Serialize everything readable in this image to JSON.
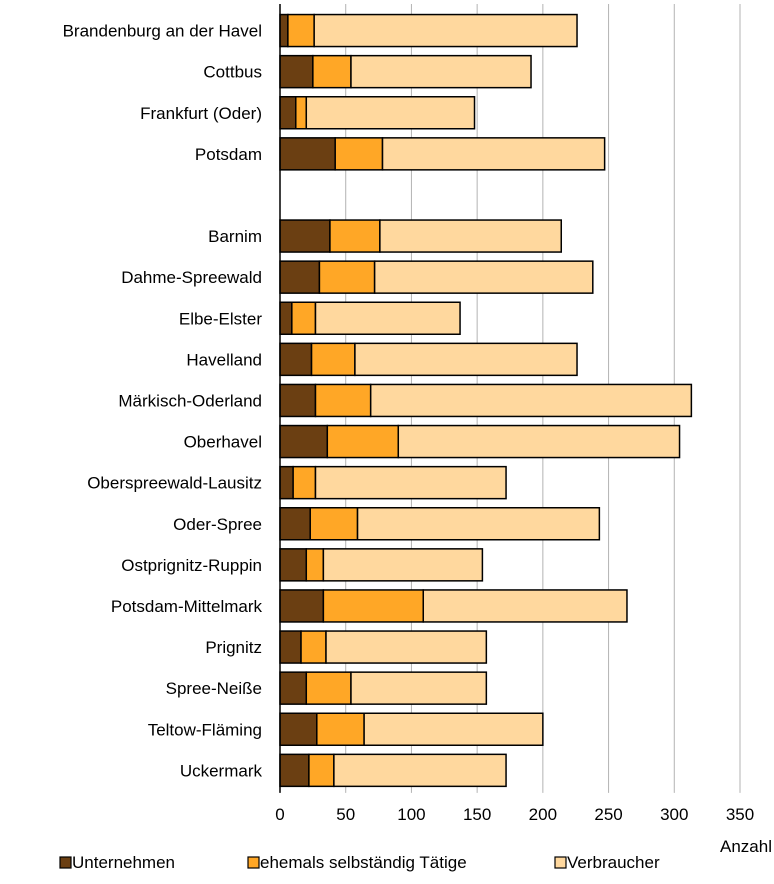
{
  "chart_data": {
    "type": "bar",
    "orientation": "horizontal",
    "stacked": true,
    "categories": [
      "Brandenburg an der Havel",
      "Cottbus",
      "Frankfurt (Oder)",
      "Potsdam",
      "",
      "Barnim",
      "Dahme-Spreewald",
      "Elbe-Elster",
      "Havelland",
      "Märkisch-Oderland",
      "Oberhavel",
      "Oberspreewald-Lausitz",
      "Oder-Spree",
      "Ostprignitz-Ruppin",
      "Potsdam-Mittelmark",
      "Prignitz",
      "Spree-Neiße",
      "Teltow-Fläming",
      "Uckermark"
    ],
    "series": [
      {
        "name": "Unternehmen",
        "color": "#6b3f12",
        "values": [
          6,
          25,
          12,
          42,
          null,
          38,
          30,
          9,
          24,
          27,
          36,
          10,
          23,
          20,
          33,
          16,
          20,
          28,
          22
        ]
      },
      {
        "name": "ehemals selbständig Tätige",
        "color": "#ffa726",
        "values": [
          20,
          29,
          8,
          36,
          null,
          38,
          42,
          18,
          33,
          42,
          54,
          17,
          36,
          13,
          76,
          19,
          34,
          36,
          19
        ]
      },
      {
        "name": "Verbraucher",
        "color": "#ffd89e",
        "values": [
          200,
          137,
          128,
          169,
          null,
          138,
          166,
          110,
          169,
          244,
          214,
          145,
          184,
          121,
          155,
          122,
          103,
          136,
          131
        ]
      }
    ],
    "xlabel": "Anzahl",
    "ylabel": "",
    "xlim": [
      0,
      350
    ],
    "xticks": [
      0,
      50,
      100,
      150,
      200,
      250,
      300,
      350
    ],
    "grid": "vertical",
    "legend": "bottom"
  }
}
